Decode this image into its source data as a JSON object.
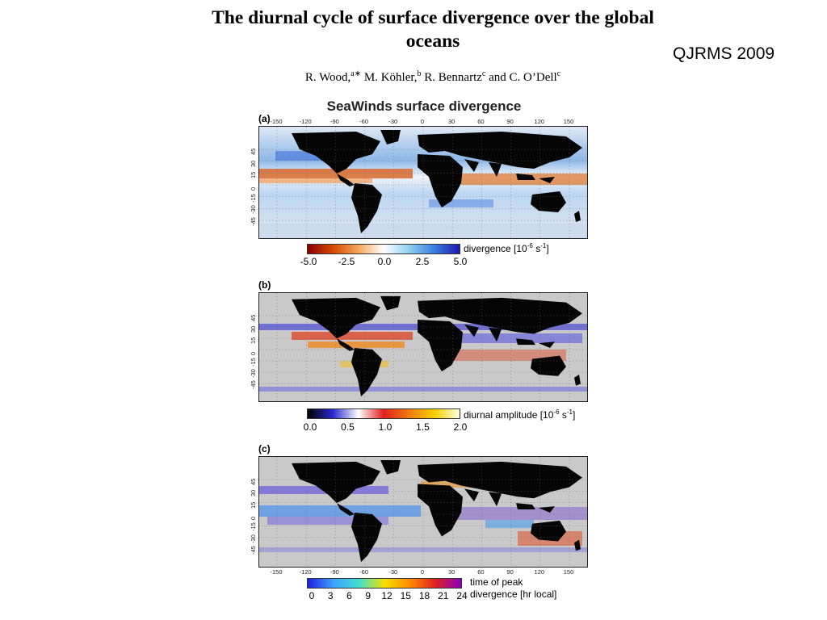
{
  "paper": {
    "title": "The diurnal cycle of surface divergence over the global oceans",
    "journal": "QJRMS 2009",
    "authors": [
      {
        "name": "R. Wood,",
        "affil": "a∗"
      },
      {
        "name": "M. Köhler,",
        "affil": "b"
      },
      {
        "name": "R. Bennartz",
        "affil": "c"
      },
      {
        "name": "and C. O’Dell",
        "affil": "c"
      }
    ]
  },
  "figure": {
    "title": "SeaWinds surface divergence",
    "lon_ticks": [
      "-150",
      "-120",
      "-90",
      "-60",
      "-30",
      "0",
      "30",
      "60",
      "90",
      "120",
      "150"
    ],
    "lat_ticks": [
      "45",
      "30",
      "15",
      "0",
      "-15",
      "-30",
      "-45"
    ],
    "panels": [
      {
        "label": "(a)",
        "colorbar_ticks": [
          "-5.0",
          "-2.5",
          "0.0",
          "2.5",
          "5.0"
        ],
        "colorbar_label_main": "divergence [10",
        "colorbar_label_sup": "-6",
        "colorbar_label_tail": " s",
        "colorbar_label_sup2": "-1",
        "colorbar_label_end": "]",
        "colors": [
          "#8b0000",
          "#d44a00",
          "#f5a65a",
          "#ffffff",
          "#8fd0f0",
          "#3a7fe0",
          "#1a1ab0"
        ]
      },
      {
        "label": "(b)",
        "colorbar_ticks": [
          "0.0",
          "0.5",
          "1.0",
          "1.5",
          "2.0"
        ],
        "colorbar_label_main": "diurnal amplitude [10",
        "colorbar_label_sup": "-6",
        "colorbar_label_tail": " s",
        "colorbar_label_sup2": "-1",
        "colorbar_label_end": "]",
        "colors": [
          "#000000",
          "#2a2ad0",
          "#ffffff",
          "#e02020",
          "#f07a10",
          "#f5d000",
          "#ffffe0"
        ]
      },
      {
        "label": "(c)",
        "colorbar_ticks": [
          "0",
          "3",
          "6",
          "9",
          "12",
          "15",
          "18",
          "21",
          "24"
        ],
        "colorbar_label_line1": "time of peak",
        "colorbar_label_line2": "divergence [hr local]",
        "colors": [
          "#2020e0",
          "#3fa0ff",
          "#40e0d0",
          "#f5e000",
          "#ff8a00",
          "#e02020",
          "#8a00c0"
        ]
      }
    ]
  }
}
